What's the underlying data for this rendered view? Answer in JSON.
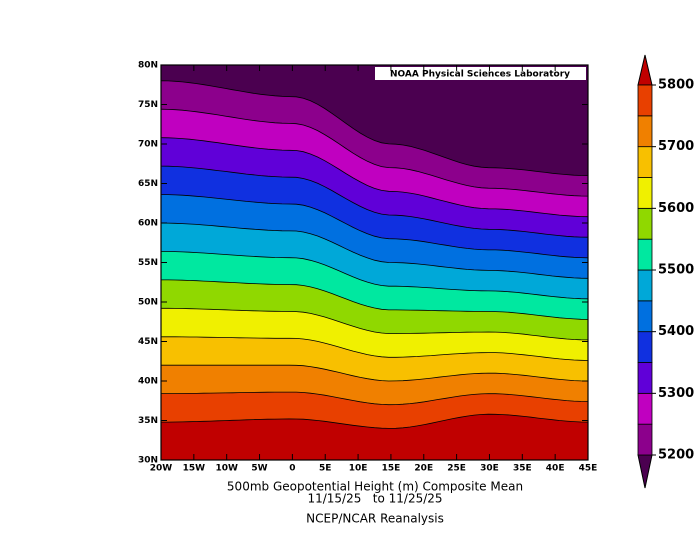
{
  "map": {
    "label": "NOAA Physical Sciences Laboratory",
    "title": "500mb Geopotential Height (m) Composite Mean",
    "dates": "11/15/25   to 11/25/25",
    "source": "NCEP/NCAR Reanalysis",
    "lat_ticks": [
      "30N",
      "35N",
      "40N",
      "45N",
      "50N",
      "55N",
      "60N",
      "65N",
      "70N",
      "75N",
      "80N"
    ],
    "lon_ticks": [
      "20W",
      "15W",
      "10W",
      "5W",
      "0",
      "5E",
      "10E",
      "15E",
      "20E",
      "25E",
      "30E",
      "35E",
      "40E",
      "45E"
    ],
    "colorbar": {
      "range": [
        5200,
        5800
      ],
      "ticks": [
        5200,
        5300,
        5400,
        5500,
        5600,
        5700,
        5800
      ],
      "colors": [
        "#4b0050",
        "#8c008c",
        "#c000c0",
        "#6000d8",
        "#1030e0",
        "#0070e0",
        "#00a8d8",
        "#00e8a0",
        "#90d800",
        "#f0f000",
        "#f8c000",
        "#f08000",
        "#e84000",
        "#c00000"
      ]
    }
  }
}
